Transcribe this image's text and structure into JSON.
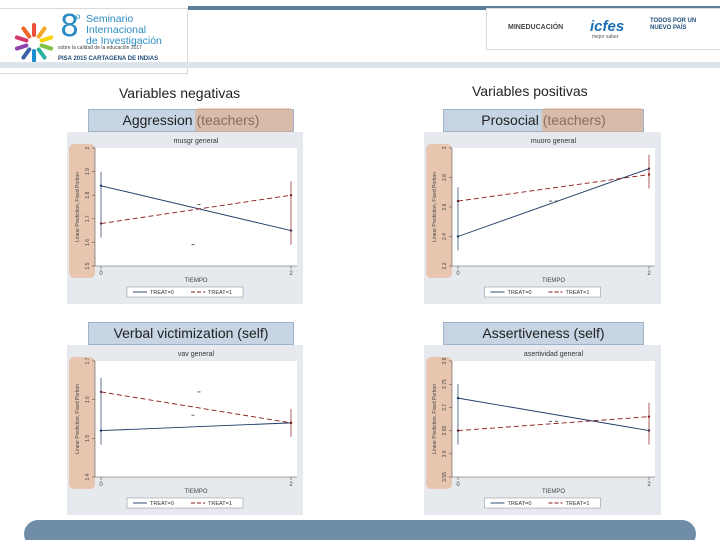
{
  "header": {
    "seminar_number": "8",
    "seminar_sup": "o",
    "seminar_lines": [
      "Seminario",
      "Internacional",
      "de Investigación"
    ],
    "seminar_tag": "sobre la calidad de la educación 2017",
    "pisa_line": "PISA 2015  CARTAGENA DE INDIAS",
    "mineducacion": "MINEDUCACIÓN",
    "icfes": "icfes",
    "icfes_sub": "mejor saber",
    "tpp": "TODOS POR UN NUEVO PAÍS"
  },
  "headings": {
    "negative": "Variables negativas",
    "positive": "Variables positivas"
  },
  "colors": {
    "series_0": "#1f3b66",
    "series_1": "#8b1a1a",
    "title_bar": "#c6d4e4",
    "highlight": "#e8a87c"
  },
  "chart_data": [
    {
      "type": "line",
      "panel_title": "Aggression (teachers)",
      "title": "musgr general",
      "xlabel": "TIEMPO",
      "ylabel": "Linear Prediction, Fixed Portion",
      "x": [
        0,
        2
      ],
      "ylim": [
        1.5,
        2.0
      ],
      "yticks": [
        "1.5",
        "1.6",
        "1.7",
        "1.8",
        "1.9",
        "2"
      ],
      "series": [
        {
          "name": "TREAT=0",
          "values": [
            1.84,
            1.65
          ]
        },
        {
          "name": "TREAT=1",
          "values": [
            1.68,
            1.8
          ]
        }
      ],
      "mid": [
        1.59,
        1.76
      ],
      "legend": "bottom"
    },
    {
      "type": "line",
      "panel_title": "Prosocial (teachers)",
      "title": "muoro general",
      "xlabel": "TIEMPO",
      "ylabel": "Linear Prediction, Fixed Portion",
      "x": [
        0,
        2
      ],
      "ylim": [
        2.2,
        3.0
      ],
      "yticks": [
        "2.2",
        "2.4",
        "2.6",
        "2.8",
        "3"
      ],
      "series": [
        {
          "name": "TREAT=0",
          "values": [
            2.4,
            2.86
          ]
        },
        {
          "name": "TREAT=1",
          "values": [
            2.64,
            2.82
          ]
        }
      ],
      "mid": [
        2.64,
        2.64
      ],
      "legend": "bottom"
    },
    {
      "type": "line",
      "panel_title": "Verbal victimization (self)",
      "title": "vav general",
      "xlabel": "TIEMPO",
      "ylabel": "Linear Prediction, Fixed Portion",
      "x": [
        0,
        2
      ],
      "ylim": [
        1.4,
        1.7
      ],
      "yticks": [
        "1.4",
        "1.5",
        "1.6",
        "1.7"
      ],
      "series": [
        {
          "name": "TREAT=0",
          "values": [
            1.52,
            1.54
          ]
        },
        {
          "name": "TREAT=1",
          "values": [
            1.62,
            1.54
          ]
        }
      ],
      "mid": [
        1.56,
        1.62
      ],
      "legend": "bottom"
    },
    {
      "type": "line",
      "panel_title": "Assertiveness (self)",
      "title": "asertividad general",
      "xlabel": "TIEMPO",
      "ylabel": "Linear Prediction, Fixed Portion",
      "x": [
        0,
        2
      ],
      "ylim": [
        3.55,
        3.8
      ],
      "yticks": [
        "3.55",
        "3.6",
        "3.65",
        "3.7",
        "3.75",
        "3.8"
      ],
      "series": [
        {
          "name": "TREAT=0",
          "values": [
            3.72,
            3.65
          ]
        },
        {
          "name": "TREAT=1",
          "values": [
            3.65,
            3.68
          ]
        }
      ],
      "mid": [
        3.67,
        3.67
      ],
      "legend": "bottom"
    }
  ]
}
